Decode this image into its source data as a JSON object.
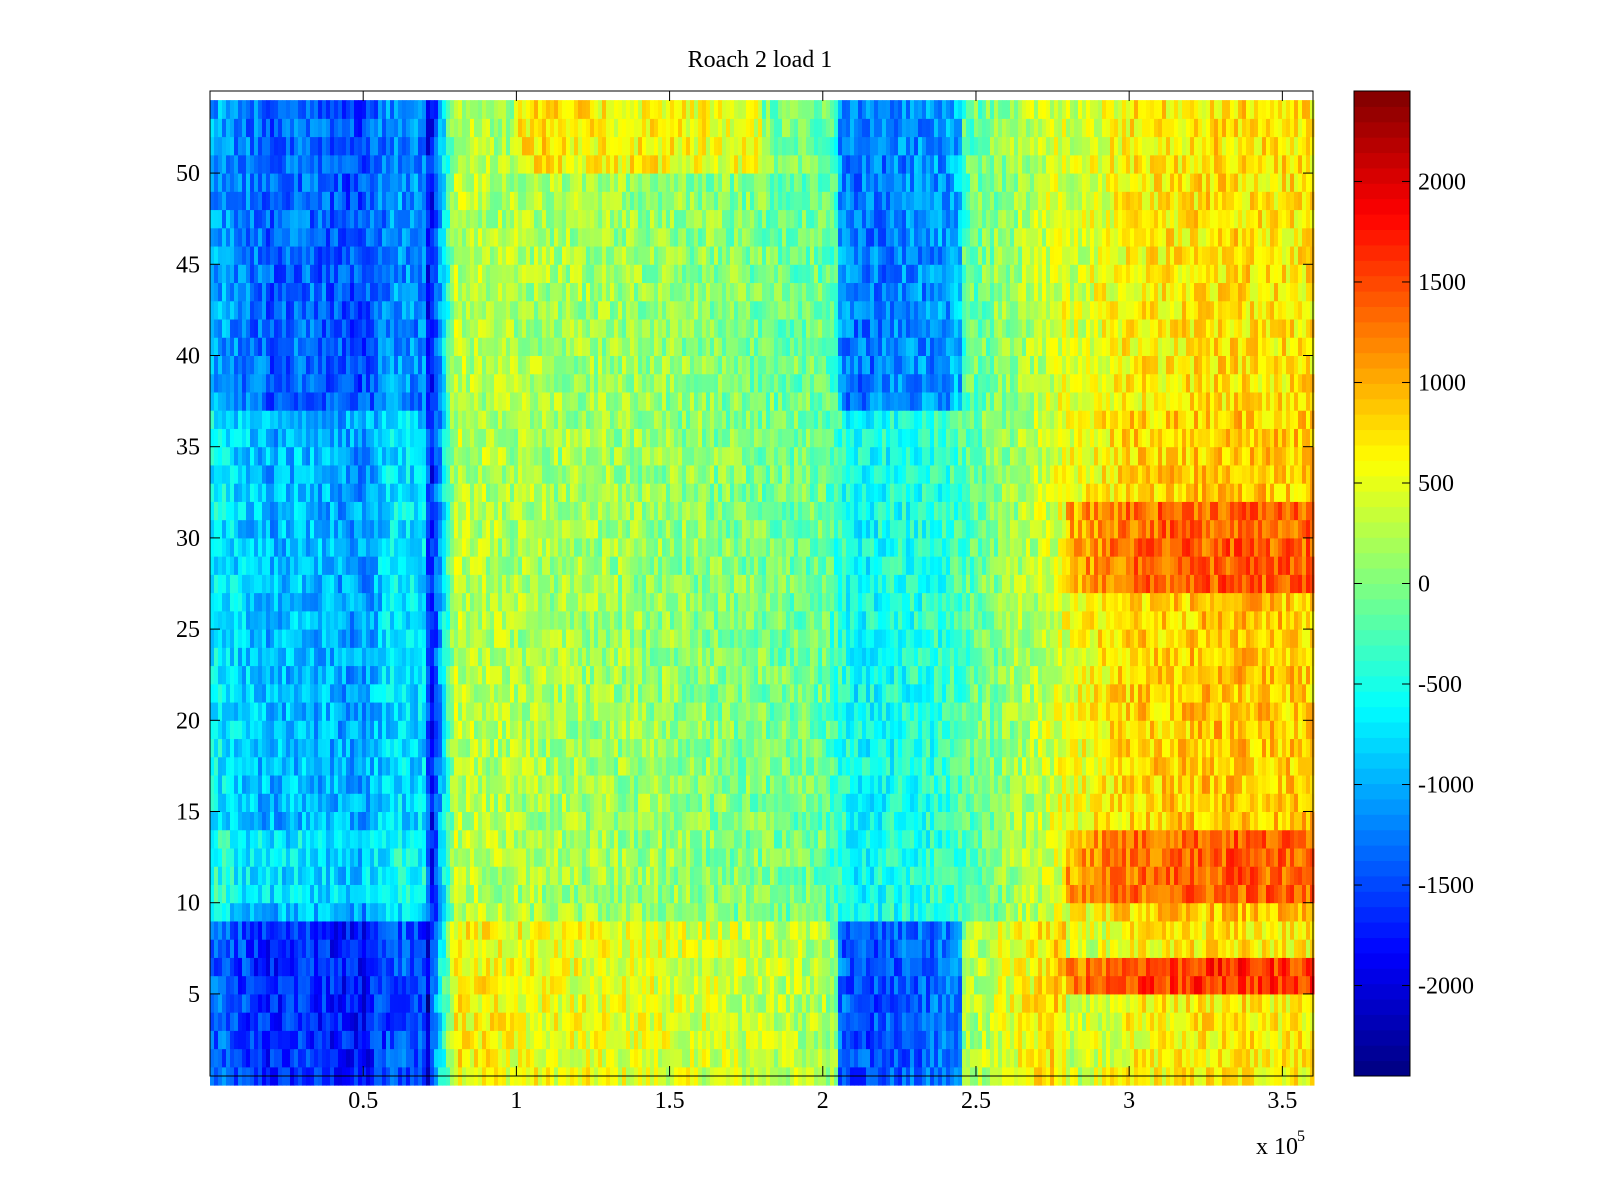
{
  "chart_data": {
    "type": "heatmap",
    "title": "Roach 2 load 1",
    "xlabel": "",
    "ylabel": "",
    "x_exponent_label": "x 10",
    "x_exponent_power": "5",
    "xlim": [
      0,
      360000
    ],
    "ylim": [
      0.5,
      54.5
    ],
    "x_ticks": [
      50000,
      100000,
      150000,
      200000,
      250000,
      300000,
      350000
    ],
    "x_tick_labels": [
      "0.5",
      "1",
      "1.5",
      "2",
      "2.5",
      "3",
      "3.5"
    ],
    "y_ticks": [
      5,
      10,
      15,
      20,
      25,
      30,
      35,
      40,
      45,
      50
    ],
    "y_tick_labels": [
      "5",
      "10",
      "15",
      "20",
      "25",
      "30",
      "35",
      "40",
      "45",
      "50"
    ],
    "rows": 54,
    "colorbar": {
      "colormap": "jet",
      "clim": [
        -2450,
        2450
      ],
      "ticks": [
        2000,
        1500,
        1000,
        500,
        0,
        -500,
        -1000,
        -1500,
        -2000
      ],
      "tick_labels": [
        "2000",
        "1500",
        "1000",
        "500",
        "0",
        "-500",
        "-1000",
        "-1500",
        "-2000"
      ]
    },
    "x_profile": {
      "x": [
        0,
        10000,
        20000,
        30000,
        40000,
        50000,
        60000,
        70000,
        72000,
        80000,
        100000,
        105000,
        150000,
        200000,
        210000,
        240000,
        250000,
        280000,
        300000,
        330000,
        360000
      ],
      "value": [
        -600,
        -800,
        -1000,
        -900,
        -1000,
        -1100,
        -700,
        -800,
        -1900,
        300,
        200,
        200,
        100,
        -100,
        -600,
        -400,
        -100,
        500,
        800,
        900,
        850
      ]
    },
    "row_groups": [
      {
        "rows": [
          1,
          4
        ],
        "note": "low band"
      },
      {
        "rows": [
          5,
          9
        ],
        "note": "low band"
      },
      {
        "rows": [
          10,
          14
        ],
        "note": "warm right"
      },
      {
        "rows": [
          15,
          27
        ],
        "note": "warm right"
      },
      {
        "rows": [
          28,
          32
        ],
        "note": "hot right"
      },
      {
        "rows": [
          33,
          37
        ],
        "note": "warm right"
      },
      {
        "rows": [
          38,
          43
        ],
        "note": "blue bands"
      },
      {
        "rows": [
          44,
          54
        ],
        "note": "blue bands"
      }
    ]
  }
}
